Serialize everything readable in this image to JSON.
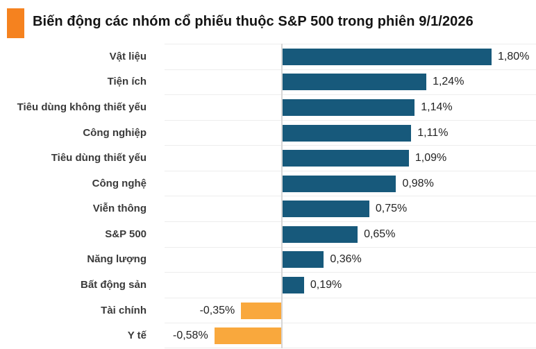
{
  "header": {
    "title": "Biến động các nhóm cổ phiếu thuộc S&P 500 trong phiên 9/1/2026",
    "accent_color": "#F5821F"
  },
  "chart_data": {
    "type": "bar",
    "orientation": "horizontal",
    "title": "Biến động các nhóm cổ phiếu thuộc S&P 500 trong phiên 9/1/2026",
    "categories": [
      "Vật liệu",
      "Tiện ích",
      "Tiêu dùng không thiết yếu",
      "Công nghiệp",
      "Tiêu dùng thiết yếu",
      "Công nghệ",
      "Viễn thông",
      "S&P 500",
      "Năng lượng",
      "Bất động sản",
      "Tài chính",
      "Y tế"
    ],
    "values": [
      1.8,
      1.24,
      1.14,
      1.11,
      1.09,
      0.98,
      0.75,
      0.65,
      0.36,
      0.19,
      -0.35,
      -0.58
    ],
    "value_labels": [
      "1,80%",
      "1,24%",
      "1,14%",
      "1,11%",
      "1,09%",
      "0,98%",
      "0,75%",
      "0,65%",
      "0,36%",
      "0,19%",
      "-0,35%",
      "-0,58%"
    ],
    "unit": "%",
    "positive_color": "#17597B",
    "negative_color": "#F9A83D",
    "gridline_color": "#EDEDED",
    "axis_color": "#D6D6D6",
    "xlim": [
      -0.75,
      2.1
    ],
    "grid": "horizontal-row-separators",
    "legend": false,
    "value_label_position": "outside-end"
  }
}
